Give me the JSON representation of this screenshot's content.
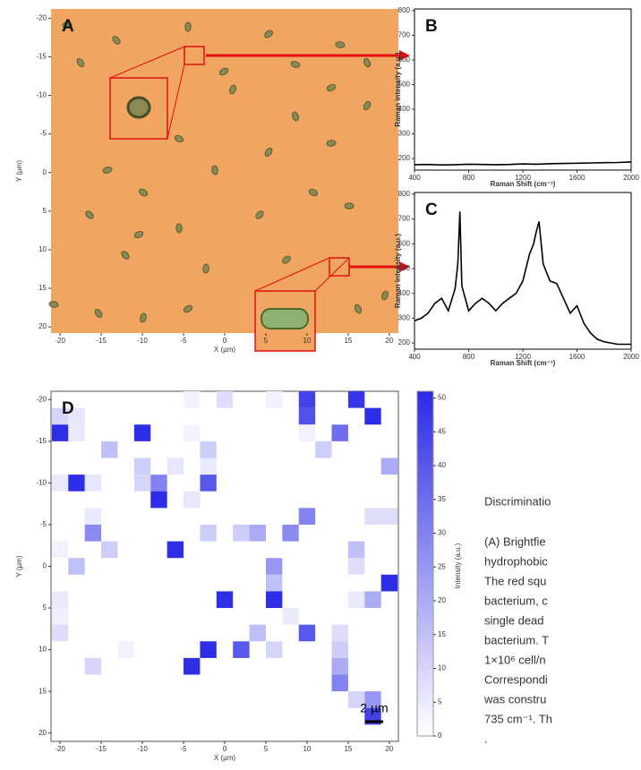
{
  "chart_data": [
    {
      "type": "image",
      "panel": "A",
      "xlabel": "X (µm)",
      "ylabel": "Y (µm)",
      "xlim": [
        -21.1,
        21.1
      ],
      "ylim": [
        20.8,
        -21.2
      ],
      "xticks": [
        -20,
        -15,
        -10,
        -5,
        0,
        5,
        10,
        15,
        20
      ],
      "yticks": [
        -20,
        -15,
        -10,
        -5,
        0,
        5,
        10,
        15,
        20
      ]
    },
    {
      "type": "line",
      "panel": "B",
      "xlabel": "Raman Shift (cm⁻¹)",
      "ylabel": "Raman intensity (a.u.)",
      "color": "#000000",
      "x": [
        400,
        500,
        600,
        700,
        800,
        900,
        1000,
        1100,
        1200,
        1300,
        1400,
        1500,
        1600,
        1700,
        1800,
        1900,
        2000
      ],
      "values": [
        175,
        176,
        174,
        175,
        177,
        176,
        175,
        176,
        178,
        177,
        179,
        180,
        181,
        182,
        183,
        184,
        186
      ],
      "xlim": [
        400,
        2000
      ],
      "ylim": [
        153,
        807
      ],
      "xticks": [
        400,
        800,
        1200,
        1600,
        2000
      ],
      "yticks": [
        200,
        300,
        400,
        500,
        600,
        700,
        800
      ]
    },
    {
      "type": "line",
      "panel": "C",
      "xlabel": "Raman Shift (cm⁻¹)",
      "ylabel": "Raman intensity (a.u.)",
      "color": "#000000",
      "x": [
        400,
        450,
        500,
        550,
        600,
        650,
        700,
        720,
        735,
        750,
        800,
        850,
        900,
        950,
        1000,
        1050,
        1100,
        1150,
        1200,
        1250,
        1280,
        1300,
        1320,
        1350,
        1400,
        1450,
        1500,
        1550,
        1600,
        1650,
        1700,
        1750,
        1800,
        1850,
        1900,
        1950,
        2000
      ],
      "values": [
        290,
        300,
        320,
        360,
        380,
        330,
        420,
        520,
        730,
        430,
        330,
        360,
        380,
        360,
        330,
        360,
        380,
        400,
        450,
        560,
        600,
        650,
        690,
        520,
        450,
        440,
        380,
        320,
        350,
        280,
        240,
        215,
        205,
        200,
        195,
        195,
        195
      ],
      "xlim": [
        400,
        2000
      ],
      "ylim": [
        175,
        807
      ],
      "xticks": [
        400,
        800,
        1200,
        1600,
        2000
      ],
      "yticks": [
        200,
        300,
        400,
        500,
        600,
        700,
        800
      ]
    },
    {
      "type": "heatmap",
      "panel": "D",
      "xlabel": "X (µm)",
      "ylabel": "Y (µm)",
      "colorbar_label": "Intensity (a.u.)",
      "scalebar": "2 µm",
      "cmap": [
        "#ffffff",
        "#2a2ae6"
      ],
      "clim": [
        0,
        51
      ],
      "xlim": [
        -21.1,
        21.1
      ],
      "ylim": [
        21,
        -21
      ],
      "xticks": [
        -20,
        -15,
        -10,
        -5,
        0,
        5,
        10,
        15,
        20
      ],
      "yticks": [
        -20,
        -15,
        -10,
        -5,
        0,
        5,
        10,
        15,
        20
      ],
      "cticks": [
        0,
        5,
        10,
        15,
        20,
        25,
        30,
        35,
        40,
        45,
        50
      ],
      "x": [
        -4,
        0,
        6,
        10,
        16,
        -20,
        -18,
        10,
        18,
        -20,
        -18,
        -10,
        -4,
        10,
        14,
        -14,
        -2,
        12,
        -10,
        -6,
        -2,
        20,
        -20,
        -18,
        -16,
        -10,
        -8,
        -2,
        -8,
        -4,
        -16,
        10,
        18,
        20,
        -16,
        -2,
        2,
        4,
        8,
        -20,
        -14,
        -6,
        16,
        -18,
        6,
        16,
        6,
        20,
        -20,
        0,
        6,
        16,
        18,
        -20,
        8,
        -20,
        4,
        10,
        14,
        -12,
        -2,
        2,
        6,
        14,
        -16,
        -4,
        14,
        14,
        16,
        18,
        18
      ],
      "y": [
        -20,
        -20,
        -20,
        -20,
        -20,
        -18,
        -18,
        -18,
        -18,
        -16,
        -16,
        -16,
        -16,
        -16,
        -16,
        -14,
        -14,
        -14,
        -12,
        -12,
        -12,
        -12,
        -10,
        -10,
        -10,
        -10,
        -10,
        -10,
        -8,
        -8,
        -6,
        -6,
        -6,
        -6,
        -4,
        -4,
        -4,
        -4,
        -4,
        -2,
        -2,
        -2,
        -2,
        0,
        0,
        0,
        2,
        2,
        4,
        4,
        4,
        4,
        4,
        6,
        6,
        8,
        8,
        8,
        8,
        10,
        10,
        10,
        10,
        10,
        12,
        12,
        12,
        14,
        16,
        16,
        18
      ],
      "values": [
        3,
        8,
        3,
        45,
        48,
        10,
        6,
        42,
        50,
        50,
        5,
        50,
        3,
        3,
        35,
        15,
        12,
        12,
        12,
        6,
        5,
        20,
        5,
        50,
        6,
        10,
        30,
        40,
        50,
        6,
        5,
        30,
        8,
        8,
        28,
        12,
        12,
        20,
        28,
        3,
        12,
        50,
        15,
        15,
        25,
        8,
        15,
        50,
        5,
        50,
        50,
        5,
        20,
        4,
        5,
        8,
        15,
        40,
        8,
        3,
        50,
        40,
        10,
        12,
        10,
        50,
        20,
        30,
        10,
        25,
        45
      ]
    }
  ],
  "caption": [
    "Discriminatio",
    "(A)  Brightfie",
    "hydrophobic",
    "The red squ",
    "bacterium, c",
    "single dead",
    "bacterium. T",
    "1×10⁶ cell/n",
    "Correspondi",
    "was constru",
    "735 cm⁻¹. Th",
    "."
  ]
}
